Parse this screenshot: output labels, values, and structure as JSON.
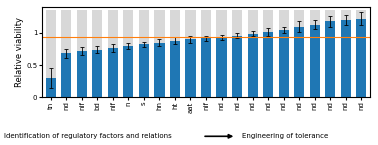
{
  "chart_data": {
    "type": "bar",
    "categories": [
      "tn",
      "nd",
      "nif",
      "bd",
      "nif",
      "n",
      "s",
      "hn",
      "ht",
      "aat",
      "nif",
      "nd",
      "nd",
      "nd",
      "nd",
      "nd",
      "nd",
      "nd",
      "nd",
      "nd",
      "nd"
    ],
    "values": [
      0.3,
      0.68,
      0.72,
      0.74,
      0.77,
      0.8,
      0.82,
      0.85,
      0.88,
      0.9,
      0.92,
      0.93,
      0.96,
      0.99,
      1.02,
      1.05,
      1.1,
      1.13,
      1.18,
      1.2,
      1.22
    ],
    "errors": [
      0.15,
      0.07,
      0.06,
      0.06,
      0.06,
      0.05,
      0.04,
      0.05,
      0.05,
      0.05,
      0.04,
      0.04,
      0.04,
      0.04,
      0.06,
      0.05,
      0.08,
      0.07,
      0.09,
      0.08,
      0.1
    ],
    "background_height": 1.35,
    "reference_line": 0.93,
    "ylabel": "Relative viability",
    "ylim": [
      0,
      1.4
    ],
    "yticks": [
      0,
      0.5,
      1
    ],
    "annotations": [
      "Identification of regulatory factors and relations",
      "Engineering of tolerance"
    ]
  }
}
